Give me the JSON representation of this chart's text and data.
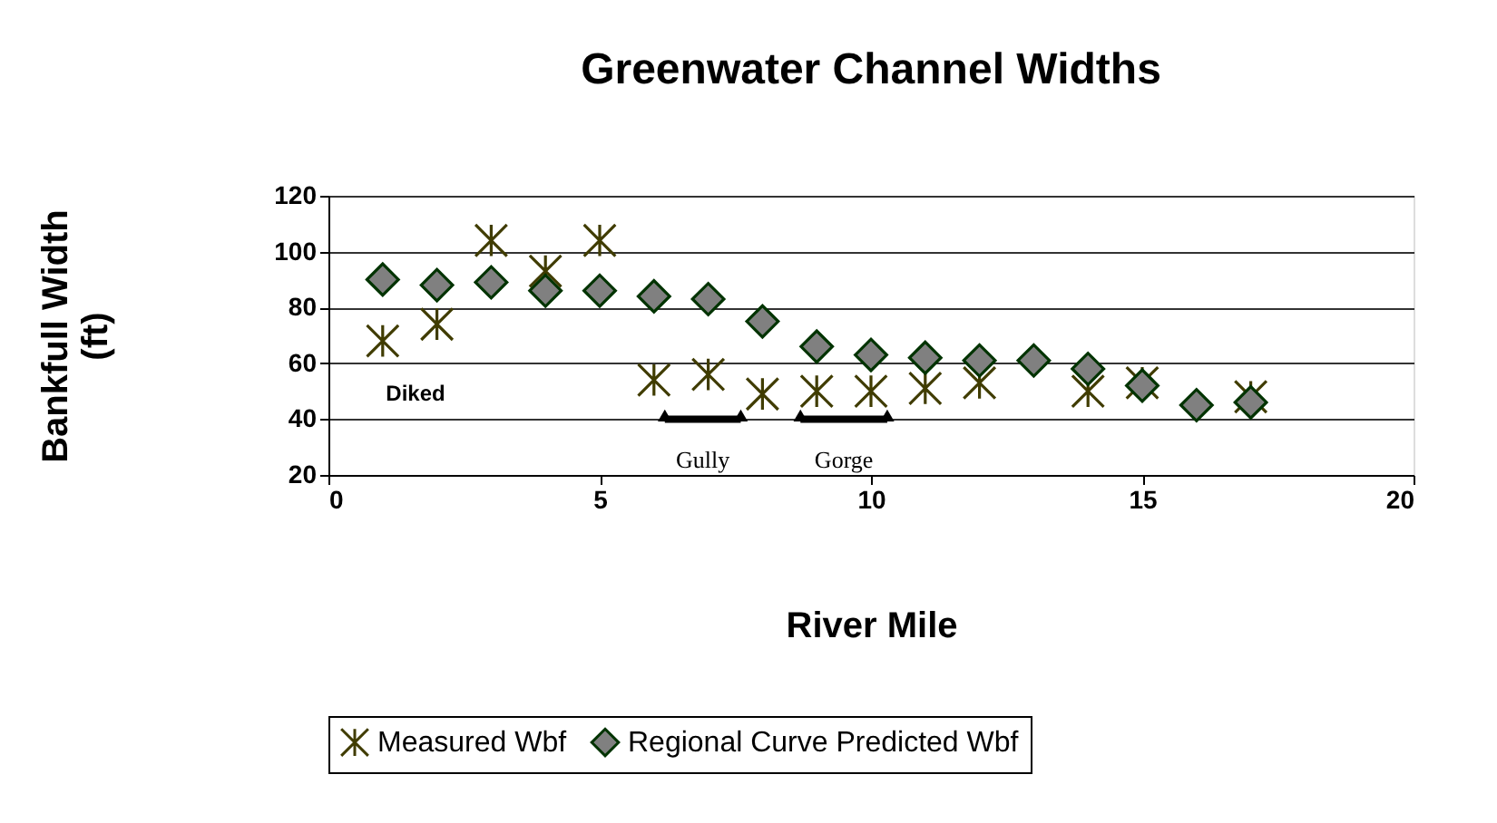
{
  "chart_data": {
    "type": "scatter",
    "title": "Greenwater Channel Widths",
    "xlabel": "River Mile",
    "ylabel": "Bankfull Width (ft)",
    "x": [
      1,
      2,
      3,
      4,
      5,
      6,
      7,
      8,
      9,
      10,
      11,
      12,
      13,
      14,
      15,
      16,
      17
    ],
    "series": [
      {
        "name": "Measured Wbf",
        "color": "#403c00",
        "marker": "cross",
        "values": [
          68,
          74,
          104,
          93,
          104,
          54,
          56,
          49,
          50,
          50,
          51,
          53,
          null,
          50,
          53,
          null,
          48
        ]
      },
      {
        "name": "Regional Curve Predicted Wbf",
        "color": "#808080",
        "marker": "diamond",
        "values": [
          90,
          88,
          89,
          86,
          86,
          84,
          83,
          75,
          66,
          63,
          62,
          61,
          61,
          58,
          52,
          45,
          46
        ]
      },
      {
        "type": "line",
        "color": "#000000",
        "marker": "triangle",
        "x": [
          6.2,
          7.6
        ],
        "values": [
          40,
          40
        ]
      },
      {
        "type": "line",
        "color": "#000000",
        "marker": "triangle",
        "x": [
          8.7,
          10.3
        ],
        "values": [
          40,
          40
        ]
      }
    ],
    "xlim": [
      0,
      20
    ],
    "xticks": [
      0,
      5,
      10,
      15,
      20
    ],
    "ylim": [
      20,
      120
    ],
    "yticks": [
      20,
      40,
      60,
      80,
      100,
      120
    ],
    "grid": "y",
    "legend": "bottom",
    "annotations": [
      "Diked",
      {
        "text": "Gully",
        "x": 6.9,
        "y": 40
      },
      {
        "text": "Gorge",
        "x": 9.5,
        "y": 40
      }
    ]
  }
}
